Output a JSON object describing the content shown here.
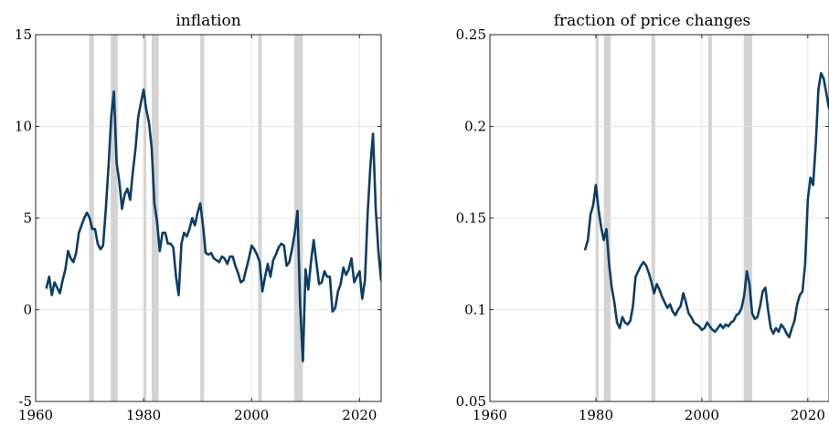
{
  "chart_data": [
    {
      "type": "line",
      "title": "inflation",
      "xlim": [
        1960,
        2024
      ],
      "ylim": [
        -5,
        15
      ],
      "xticks": [
        "1960",
        "1980",
        "2000",
        "2020"
      ],
      "yticks": [
        "-5",
        "0",
        "5",
        "10",
        "15"
      ],
      "grid": true,
      "line_color": "#0b3d66",
      "shade_color": "#d3d3d3",
      "recessions": [
        [
          1969.9,
          1970.8
        ],
        [
          1973.9,
          1975.2
        ],
        [
          1980.0,
          1980.5
        ],
        [
          1981.5,
          1982.8
        ],
        [
          1990.5,
          1991.2
        ],
        [
          2001.2,
          2001.9
        ],
        [
          2007.9,
          2009.5
        ]
      ],
      "series": [
        {
          "x": [
            1962.0,
            1962.5,
            1963.0,
            1963.5,
            1964.0,
            1964.5,
            1965.0,
            1965.5,
            1966.0,
            1966.5,
            1967.0,
            1967.5,
            1968.0,
            1968.5,
            1969.0,
            1969.5,
            1970.0,
            1970.5,
            1971.0,
            1971.5,
            1972.0,
            1972.5,
            1973.0,
            1973.5,
            1974.0,
            1974.5,
            1975.0,
            1975.5,
            1976.0,
            1976.5,
            1977.0,
            1977.5,
            1978.0,
            1978.5,
            1979.0,
            1979.5,
            1980.0,
            1980.5,
            1981.0,
            1981.5,
            1982.0,
            1982.5,
            1983.0,
            1983.5,
            1984.0,
            1984.5,
            1985.0,
            1985.5,
            1986.0,
            1986.5,
            1987.0,
            1987.5,
            1988.0,
            1988.5,
            1989.0,
            1989.5,
            1990.0,
            1990.5,
            1991.0,
            1991.5,
            1992.0,
            1992.5,
            1993.0,
            1993.5,
            1994.0,
            1994.5,
            1995.0,
            1995.5,
            1996.0,
            1996.5,
            1997.0,
            1997.5,
            1998.0,
            1998.5,
            1999.0,
            1999.5,
            2000.0,
            2000.5,
            2001.0,
            2001.5,
            2002.0,
            2002.5,
            2003.0,
            2003.5,
            2004.0,
            2004.5,
            2005.0,
            2005.5,
            2006.0,
            2006.5,
            2007.0,
            2007.5,
            2008.0,
            2008.5,
            2009.0,
            2009.5,
            2010.0,
            2010.5,
            2011.0,
            2011.5,
            2012.0,
            2012.5,
            2013.0,
            2013.5,
            2014.0,
            2014.5,
            2015.0,
            2015.5,
            2016.0,
            2016.5,
            2017.0,
            2017.5,
            2018.0,
            2018.5,
            2019.0,
            2019.5,
            2020.0,
            2020.5,
            2021.0,
            2021.5,
            2022.0,
            2022.5,
            2023.0,
            2023.5,
            2024.0
          ],
          "y": [
            1.2,
            1.8,
            0.8,
            1.5,
            1.2,
            0.9,
            1.6,
            2.2,
            3.2,
            2.8,
            2.6,
            3.1,
            4.2,
            4.6,
            5.0,
            5.3,
            5.0,
            4.4,
            4.4,
            3.6,
            3.3,
            3.5,
            5.5,
            7.8,
            10.5,
            11.9,
            8.0,
            7.0,
            5.5,
            6.3,
            6.6,
            6.0,
            7.5,
            8.8,
            10.5,
            11.3,
            12.0,
            10.9,
            10.2,
            8.8,
            5.8,
            4.8,
            3.2,
            4.2,
            4.2,
            3.6,
            3.6,
            3.4,
            1.8,
            0.8,
            3.6,
            4.2,
            4.0,
            4.4,
            5.0,
            4.6,
            5.3,
            5.8,
            4.6,
            3.1,
            3.0,
            3.1,
            2.8,
            2.7,
            2.6,
            2.9,
            2.8,
            2.5,
            2.9,
            2.9,
            2.4,
            2.0,
            1.5,
            1.6,
            2.2,
            2.8,
            3.5,
            3.3,
            3.0,
            2.6,
            1.0,
            1.8,
            2.5,
            1.8,
            2.7,
            3.0,
            3.4,
            3.6,
            3.5,
            2.4,
            2.6,
            3.3,
            4.2,
            5.4,
            0.2,
            -2.8,
            2.2,
            1.1,
            2.6,
            3.8,
            2.6,
            1.4,
            1.5,
            2.1,
            1.8,
            1.8,
            -0.1,
            0.1,
            1.0,
            1.4,
            2.3,
            1.9,
            2.2,
            2.8,
            1.5,
            1.8,
            2.1,
            0.6,
            1.6,
            5.2,
            7.8,
            9.6,
            5.5,
            3.2,
            1.6
          ]
        }
      ]
    },
    {
      "type": "line",
      "title": "fraction of price changes",
      "xlim": [
        1960,
        2024
      ],
      "ylim": [
        0.05,
        0.25
      ],
      "xticks": [
        "1960",
        "1980",
        "2000",
        "2020"
      ],
      "yticks": [
        "0.05",
        "0.1",
        "0.15",
        "0.2",
        "0.25"
      ],
      "grid": true,
      "line_color": "#0b3d66",
      "shade_color": "#d3d3d3",
      "recessions": [
        [
          1980.0,
          1980.5
        ],
        [
          1981.5,
          1982.8
        ],
        [
          1990.5,
          1991.2
        ],
        [
          2001.2,
          2001.9
        ],
        [
          2007.9,
          2009.5
        ]
      ],
      "series": [
        {
          "x": [
            1978.0,
            1978.5,
            1979.0,
            1979.5,
            1980.0,
            1980.5,
            1981.0,
            1981.5,
            1982.0,
            1982.5,
            1983.0,
            1983.5,
            1984.0,
            1984.5,
            1985.0,
            1985.5,
            1986.0,
            1986.5,
            1987.0,
            1987.5,
            1988.0,
            1988.5,
            1989.0,
            1989.5,
            1990.0,
            1990.5,
            1991.0,
            1991.5,
            1992.0,
            1992.5,
            1993.0,
            1993.5,
            1994.0,
            1994.5,
            1995.0,
            1995.5,
            1996.0,
            1996.5,
            1997.0,
            1997.5,
            1998.0,
            1998.5,
            1999.0,
            1999.5,
            2000.0,
            2000.5,
            2001.0,
            2001.5,
            2002.0,
            2002.5,
            2003.0,
            2003.5,
            2004.0,
            2004.5,
            2005.0,
            2005.5,
            2006.0,
            2006.5,
            2007.0,
            2007.5,
            2008.0,
            2008.5,
            2009.0,
            2009.5,
            2010.0,
            2010.5,
            2011.0,
            2011.5,
            2012.0,
            2012.5,
            2013.0,
            2013.5,
            2014.0,
            2014.5,
            2015.0,
            2015.5,
            2016.0,
            2016.5,
            2017.0,
            2017.5,
            2018.0,
            2018.5,
            2019.0,
            2019.5,
            2020.0,
            2020.5,
            2021.0,
            2021.5,
            2022.0,
            2022.5,
            2023.0,
            2023.5,
            2024.0
          ],
          "y": [
            0.133,
            0.138,
            0.152,
            0.157,
            0.168,
            0.155,
            0.145,
            0.138,
            0.144,
            0.125,
            0.112,
            0.104,
            0.093,
            0.09,
            0.096,
            0.093,
            0.092,
            0.094,
            0.102,
            0.118,
            0.121,
            0.124,
            0.126,
            0.124,
            0.12,
            0.115,
            0.109,
            0.114,
            0.111,
            0.107,
            0.104,
            0.101,
            0.103,
            0.099,
            0.097,
            0.1,
            0.102,
            0.109,
            0.104,
            0.098,
            0.096,
            0.093,
            0.092,
            0.091,
            0.089,
            0.09,
            0.093,
            0.091,
            0.089,
            0.088,
            0.09,
            0.092,
            0.09,
            0.092,
            0.091,
            0.093,
            0.094,
            0.097,
            0.098,
            0.101,
            0.108,
            0.121,
            0.114,
            0.098,
            0.095,
            0.096,
            0.102,
            0.11,
            0.112,
            0.1,
            0.09,
            0.087,
            0.09,
            0.088,
            0.092,
            0.09,
            0.087,
            0.085,
            0.09,
            0.094,
            0.103,
            0.108,
            0.11,
            0.125,
            0.16,
            0.172,
            0.168,
            0.19,
            0.22,
            0.229,
            0.226,
            0.218,
            0.21
          ]
        }
      ]
    }
  ]
}
